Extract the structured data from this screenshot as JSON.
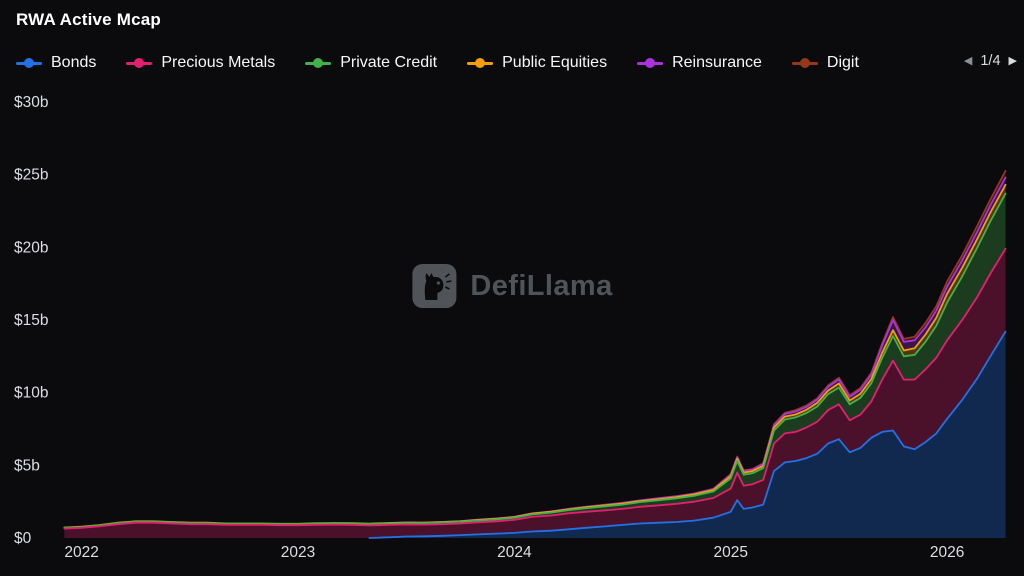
{
  "header": {
    "title": "RWA Active Mcap"
  },
  "legend": {
    "pager": {
      "prev": "◀",
      "label": "1/4",
      "next": "▶",
      "prev_icon": "chevron-left-icon",
      "next_icon": "chevron-right-icon"
    }
  },
  "watermark": {
    "text": "DefiLlama",
    "icon": "llama-logo-icon",
    "color": "#949a9f"
  },
  "colors": {
    "background": "#0b0b0e",
    "axis_text": "#dcdee1",
    "legend_text": "#f7f7f7",
    "bonds": "#2172e5",
    "precious_metals": "#e2206f",
    "private_credit": "#44b04a",
    "public_equities": "#f2a007",
    "reinsurance": "#ab33dd",
    "digit": "#96381c"
  },
  "chart_data": {
    "type": "area",
    "stacked": true,
    "title": "RWA Active Mcap",
    "xlabel": "",
    "ylabel": "",
    "grid": false,
    "legend_position": "top",
    "xlim": [
      2021.9,
      2026.3
    ],
    "ylim": [
      0,
      30
    ],
    "x_ticks": [
      2022,
      2023,
      2024,
      2025,
      2026
    ],
    "x_tick_labels": [
      "2022",
      "2023",
      "2024",
      "2025",
      "2026"
    ],
    "y_ticks": [
      0,
      5,
      10,
      15,
      20,
      25,
      30
    ],
    "y_tick_labels": [
      "$0",
      "$5b",
      "$10b",
      "$15b",
      "$20b",
      "$25b",
      "$30b"
    ],
    "units": "billions USD",
    "x": [
      2021.92,
      2022.0,
      2022.08,
      2022.17,
      2022.25,
      2022.33,
      2022.42,
      2022.5,
      2022.58,
      2022.67,
      2022.75,
      2022.83,
      2022.92,
      2023.0,
      2023.08,
      2023.17,
      2023.25,
      2023.33,
      2023.42,
      2023.5,
      2023.58,
      2023.67,
      2023.75,
      2023.83,
      2023.92,
      2024.0,
      2024.08,
      2024.17,
      2024.25,
      2024.33,
      2024.42,
      2024.5,
      2024.58,
      2024.67,
      2024.75,
      2024.83,
      2024.92,
      2025.0,
      2025.03,
      2025.06,
      2025.1,
      2025.15,
      2025.2,
      2025.25,
      2025.3,
      2025.35,
      2025.4,
      2025.45,
      2025.5,
      2025.55,
      2025.6,
      2025.65,
      2025.7,
      2025.75,
      2025.8,
      2025.85,
      2025.9,
      2025.95,
      2026.0,
      2026.07,
      2026.14,
      2026.2,
      2026.27
    ],
    "series": [
      {
        "name": "Bonds",
        "color": "#2172e5",
        "values": [
          0,
          0,
          0,
          0,
          0,
          0,
          0,
          0,
          0,
          0,
          0,
          0,
          0,
          0,
          0,
          0,
          0,
          0,
          0.05,
          0.1,
          0.12,
          0.15,
          0.2,
          0.25,
          0.3,
          0.35,
          0.45,
          0.5,
          0.6,
          0.7,
          0.8,
          0.9,
          1.0,
          1.05,
          1.1,
          1.2,
          1.4,
          1.8,
          2.6,
          2.0,
          2.1,
          2.3,
          4.6,
          5.2,
          5.3,
          5.5,
          5.8,
          6.5,
          6.8,
          5.9,
          6.2,
          6.9,
          7.3,
          7.4,
          6.3,
          6.1,
          6.6,
          7.2,
          8.2,
          9.5,
          11.0,
          12.5,
          14.2
        ]
      },
      {
        "name": "Precious Metals",
        "color": "#e2206f",
        "values": [
          0.65,
          0.7,
          0.8,
          0.95,
          1.05,
          1.05,
          1.0,
          0.95,
          0.95,
          0.9,
          0.9,
          0.9,
          0.88,
          0.88,
          0.9,
          0.92,
          0.9,
          0.87,
          0.85,
          0.83,
          0.8,
          0.8,
          0.8,
          0.82,
          0.85,
          0.9,
          1.0,
          1.05,
          1.1,
          1.1,
          1.1,
          1.1,
          1.15,
          1.2,
          1.25,
          1.3,
          1.35,
          1.6,
          1.9,
          1.6,
          1.6,
          1.7,
          1.9,
          2.0,
          2.0,
          2.1,
          2.2,
          2.3,
          2.4,
          2.2,
          2.3,
          2.5,
          3.6,
          4.8,
          4.6,
          4.8,
          5.0,
          5.2,
          5.4,
          5.5,
          5.6,
          5.7,
          5.7
        ]
      },
      {
        "name": "Private Credit",
        "color": "#44b04a",
        "values": [
          0.05,
          0.06,
          0.07,
          0.08,
          0.08,
          0.08,
          0.08,
          0.08,
          0.08,
          0.08,
          0.08,
          0.08,
          0.08,
          0.08,
          0.09,
          0.09,
          0.1,
          0.1,
          0.1,
          0.1,
          0.1,
          0.12,
          0.12,
          0.13,
          0.14,
          0.15,
          0.17,
          0.2,
          0.22,
          0.25,
          0.28,
          0.3,
          0.32,
          0.35,
          0.38,
          0.4,
          0.45,
          0.7,
          0.8,
          0.75,
          0.75,
          0.8,
          0.9,
          0.95,
          1.0,
          1.0,
          1.05,
          1.1,
          1.15,
          1.1,
          1.15,
          1.25,
          1.5,
          1.7,
          1.6,
          1.7,
          1.9,
          2.2,
          2.6,
          3.0,
          3.4,
          3.6,
          3.8
        ]
      },
      {
        "name": "Public Equities",
        "color": "#f2a007",
        "values": [
          0.02,
          0.02,
          0.02,
          0.02,
          0.02,
          0.02,
          0.02,
          0.02,
          0.02,
          0.02,
          0.02,
          0.02,
          0.02,
          0.02,
          0.02,
          0.02,
          0.02,
          0.02,
          0.03,
          0.03,
          0.03,
          0.03,
          0.03,
          0.04,
          0.04,
          0.04,
          0.05,
          0.05,
          0.05,
          0.06,
          0.06,
          0.07,
          0.07,
          0.08,
          0.08,
          0.09,
          0.1,
          0.15,
          0.15,
          0.15,
          0.15,
          0.16,
          0.2,
          0.2,
          0.2,
          0.22,
          0.25,
          0.25,
          0.28,
          0.26,
          0.28,
          0.3,
          0.35,
          0.4,
          0.4,
          0.45,
          0.5,
          0.55,
          0.6,
          0.6,
          0.6,
          0.6,
          0.6
        ]
      },
      {
        "name": "Reinsurance",
        "color": "#ab33dd",
        "values": [
          0,
          0,
          0,
          0,
          0,
          0,
          0,
          0,
          0,
          0,
          0,
          0,
          0,
          0,
          0,
          0,
          0,
          0,
          0,
          0.01,
          0.01,
          0.01,
          0.01,
          0.02,
          0.02,
          0.02,
          0.02,
          0.03,
          0.03,
          0.03,
          0.04,
          0.04,
          0.04,
          0.05,
          0.05,
          0.05,
          0.06,
          0.1,
          0.1,
          0.1,
          0.1,
          0.12,
          0.15,
          0.18,
          0.2,
          0.2,
          0.22,
          0.25,
          0.28,
          0.25,
          0.28,
          0.3,
          0.5,
          0.7,
          0.6,
          0.55,
          0.5,
          0.5,
          0.5,
          0.5,
          0.5,
          0.5,
          0.5
        ]
      },
      {
        "name": "Digit",
        "color": "#96381c",
        "values": [
          0,
          0,
          0,
          0,
          0,
          0,
          0,
          0,
          0,
          0,
          0,
          0,
          0,
          0,
          0,
          0,
          0,
          0,
          0,
          0,
          0,
          0,
          0,
          0,
          0,
          0,
          0,
          0,
          0,
          0.01,
          0.01,
          0.01,
          0.01,
          0.02,
          0.02,
          0.02,
          0.03,
          0.05,
          0.05,
          0.05,
          0.05,
          0.06,
          0.08,
          0.08,
          0.1,
          0.1,
          0.1,
          0.1,
          0.12,
          0.1,
          0.12,
          0.12,
          0.15,
          0.2,
          0.2,
          0.25,
          0.3,
          0.3,
          0.35,
          0.35,
          0.4,
          0.4,
          0.45
        ]
      }
    ]
  }
}
